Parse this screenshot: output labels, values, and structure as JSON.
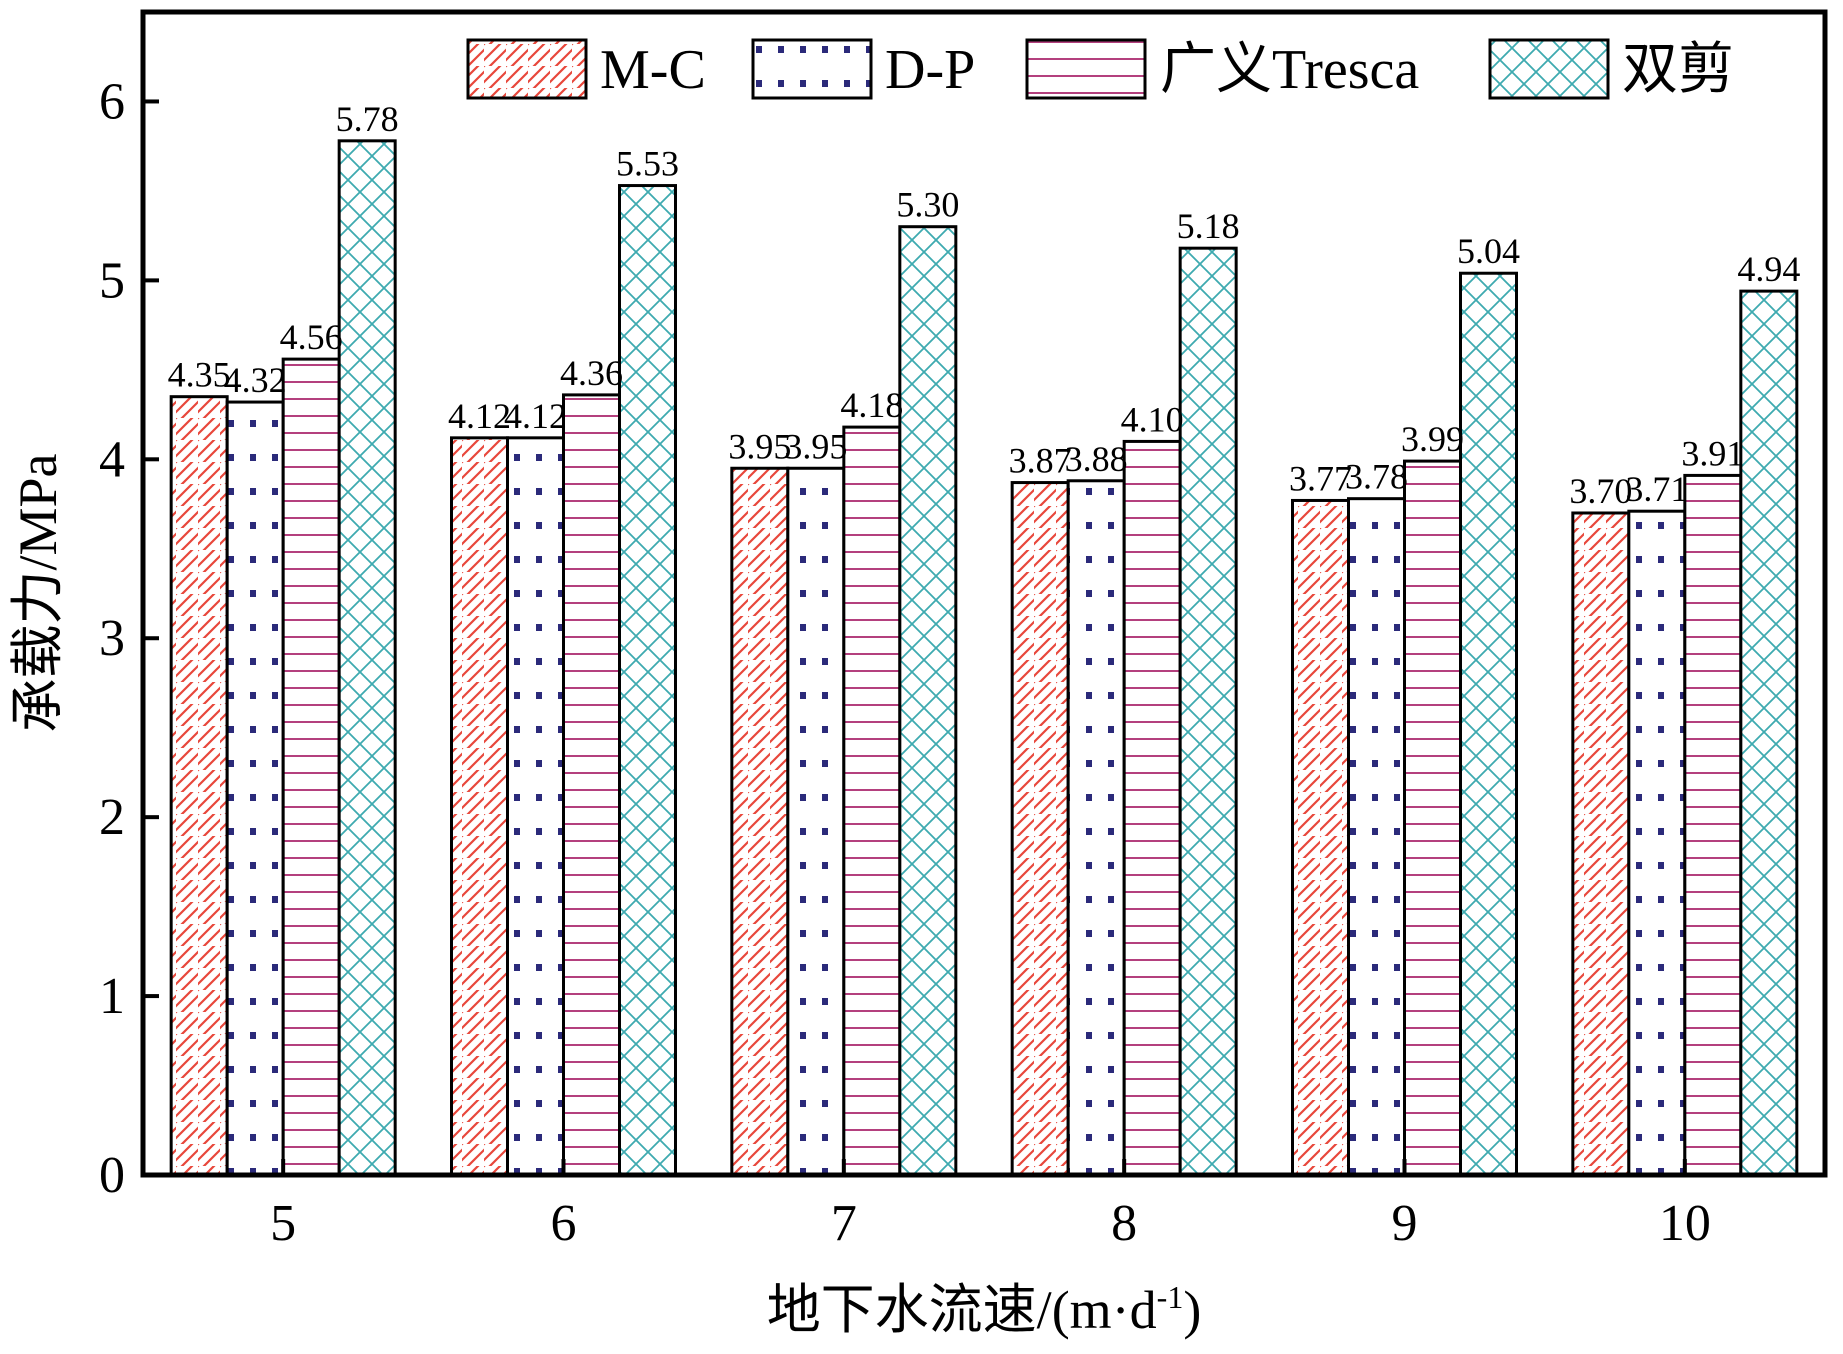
{
  "chart_data": {
    "type": "bar",
    "categories": [
      "5",
      "6",
      "7",
      "8",
      "9",
      "10"
    ],
    "series": [
      {
        "name": "M-C",
        "values": [
          4.35,
          4.12,
          3.95,
          3.87,
          3.77,
          3.7
        ],
        "labels": [
          "4.35",
          "4.12",
          "3.95",
          "3.87",
          "3.77",
          "3.70"
        ],
        "color": "#e8473b",
        "pattern": "diagonal-hatch"
      },
      {
        "name": "D-P",
        "values": [
          4.32,
          4.12,
          3.95,
          3.88,
          3.78,
          3.71
        ],
        "labels": [
          "4.32",
          "4.12",
          "3.95",
          "3.88",
          "3.78",
          "3.71"
        ],
        "color": "#2b2a7a",
        "pattern": "dots"
      },
      {
        "name": "广义Tresca",
        "values": [
          4.56,
          4.36,
          4.18,
          4.1,
          3.99,
          3.91
        ],
        "labels": [
          "4.56",
          "4.36",
          "4.18",
          "4.10",
          "3.99",
          "3.91"
        ],
        "color": "#b4407e",
        "pattern": "horizontal-lines"
      },
      {
        "name": "双剪",
        "values": [
          5.78,
          5.53,
          5.3,
          5.18,
          5.04,
          4.94
        ],
        "labels": [
          "5.78",
          "5.53",
          "5.30",
          "5.18",
          "5.04",
          "4.94"
        ],
        "color": "#3eaab0",
        "pattern": "crosshatch"
      }
    ],
    "xlabel": "地下水流速/(m·d",
    "xlabel_sup": "-1",
    "xlabel_close": ")",
    "ylabel": "承载力/MPa",
    "ylim": [
      0,
      6.5
    ],
    "yticks": [
      0,
      1,
      2,
      3,
      4,
      5,
      6
    ],
    "ytick_labels": [
      "0",
      "1",
      "2",
      "3",
      "4",
      "5",
      "6"
    ],
    "grid": false,
    "legend_position": "top"
  }
}
